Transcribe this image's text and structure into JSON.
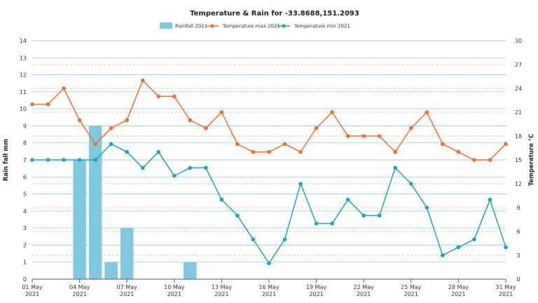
{
  "chart_data": {
    "type": "bar+line",
    "title": "Temperature & Rain for -33.8688,151.2093",
    "legend": [
      {
        "name": "Rainfall 2021",
        "kind": "bar",
        "color": "#7ec8e0"
      },
      {
        "name": "Temperature max 2021",
        "kind": "line",
        "color": "#f26b2f"
      },
      {
        "name": "Temperature min 2021",
        "kind": "line",
        "color": "#1aa3c2"
      }
    ],
    "legend_position": "top",
    "ylabel_left": "Rain fall mm",
    "ylabel_right": "Temperature °C",
    "ylim_left": [
      0,
      14
    ],
    "ylim_right": [
      0,
      30
    ],
    "yticks_left": [
      "0",
      "1",
      "2",
      "3",
      "4",
      "5",
      "6",
      "7",
      "8",
      "9",
      "10",
      "11",
      "12",
      "13",
      "14"
    ],
    "yticks_right": [
      "0",
      "3",
      "6",
      "9",
      "12",
      "15",
      "18",
      "21",
      "24",
      "27",
      "30"
    ],
    "xticks": [
      {
        "day": 1,
        "line1": "01 May",
        "line2": "2021"
      },
      {
        "day": 4,
        "line1": "04 May",
        "line2": "2021"
      },
      {
        "day": 7,
        "line1": "07 May",
        "line2": "2021"
      },
      {
        "day": 10,
        "line1": "10 May",
        "line2": "2021"
      },
      {
        "day": 13,
        "line1": "13 May",
        "line2": "2021"
      },
      {
        "day": 16,
        "line1": "16 May",
        "line2": "2021"
      },
      {
        "day": 19,
        "line1": "19 May",
        "line2": "2021"
      },
      {
        "day": 22,
        "line1": "22 May",
        "line2": "2021"
      },
      {
        "day": 25,
        "line1": "25 May",
        "line2": "2021"
      },
      {
        "day": 28,
        "line1": "28 May",
        "line2": "2021"
      },
      {
        "day": 31,
        "line1": "31 May",
        "line2": "2021"
      }
    ],
    "days": [
      1,
      2,
      3,
      4,
      5,
      6,
      7,
      8,
      9,
      10,
      11,
      12,
      13,
      14,
      15,
      16,
      17,
      18,
      19,
      20,
      21,
      22,
      23,
      24,
      25,
      26,
      27,
      28,
      29,
      30,
      31
    ],
    "rainfall": [
      0,
      0,
      0,
      7,
      9,
      1,
      3,
      0,
      0,
      0,
      1,
      0,
      0,
      0,
      0,
      0,
      0,
      0,
      0,
      0,
      0,
      0,
      0,
      0,
      0,
      0,
      0,
      0,
      0,
      0,
      0
    ],
    "temp_max": [
      22,
      22,
      24,
      20,
      17,
      19,
      20,
      25,
      23,
      23,
      20,
      19,
      21,
      17,
      16,
      16,
      17,
      16,
      19,
      21,
      18,
      18,
      18,
      16,
      19,
      21,
      17,
      16,
      15,
      15,
      17
    ],
    "temp_min": [
      15,
      15,
      15,
      15,
      15,
      17,
      16,
      14,
      16,
      13,
      14,
      14,
      10,
      8,
      5,
      2,
      5,
      12,
      7,
      7,
      10,
      8,
      8,
      14,
      12,
      9,
      3,
      4,
      5,
      10,
      4
    ],
    "grid": true
  }
}
